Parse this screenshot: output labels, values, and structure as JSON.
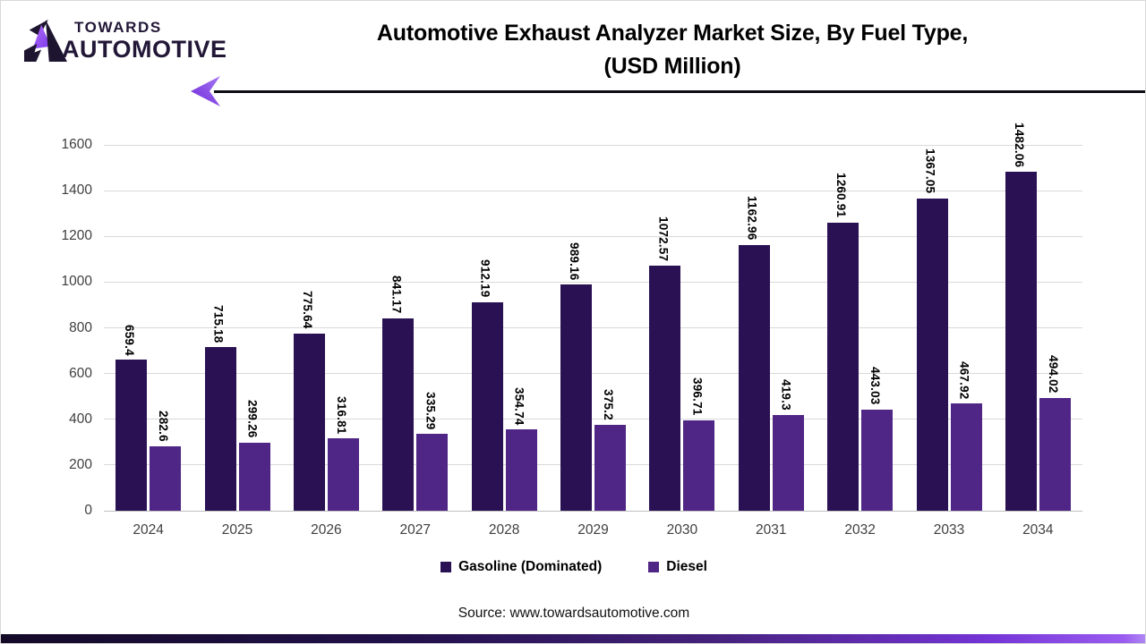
{
  "logo": {
    "line1": "TOWARDS",
    "line2": "AUTOMOTIVE"
  },
  "title": {
    "line1": "Automotive Exhaust Analyzer Market Size, By Fuel Type,",
    "line2": "(USD Million)"
  },
  "chart_data": {
    "type": "bar",
    "title": "Automotive Exhaust Analyzer Market Size, By Fuel Type, (USD Million)",
    "categories": [
      "2024",
      "2025",
      "2026",
      "2027",
      "2028",
      "2029",
      "2030",
      "2031",
      "2032",
      "2033",
      "2034"
    ],
    "series": [
      {
        "name": "Gasoline (Dominated)",
        "color": "#2a1153",
        "values": [
          659.4,
          715.18,
          775.64,
          841.17,
          912.19,
          989.16,
          1072.57,
          1162.96,
          1260.91,
          1367.05,
          1482.06
        ]
      },
      {
        "name": "Diesel",
        "color": "#4f2685",
        "values": [
          282.6,
          299.26,
          316.81,
          335.29,
          354.74,
          375.2,
          396.71,
          419.3,
          443.03,
          467.92,
          494.02
        ]
      }
    ],
    "xlabel": "",
    "ylabel": "",
    "ylim": [
      0,
      1600
    ],
    "ytick_step": 200,
    "grid": true,
    "legend_position": "bottom",
    "value_labels_rotated": true
  },
  "footer": {
    "source": "Source: www.towardsautomotive.com"
  },
  "colors": {
    "gasoline": "#2a1153",
    "diesel": "#4f2685",
    "gridline": "#d9d9d9",
    "axis_text": "#3f3f3f",
    "divider": "#0c0c14",
    "accent_purple": "#7c3aed"
  }
}
